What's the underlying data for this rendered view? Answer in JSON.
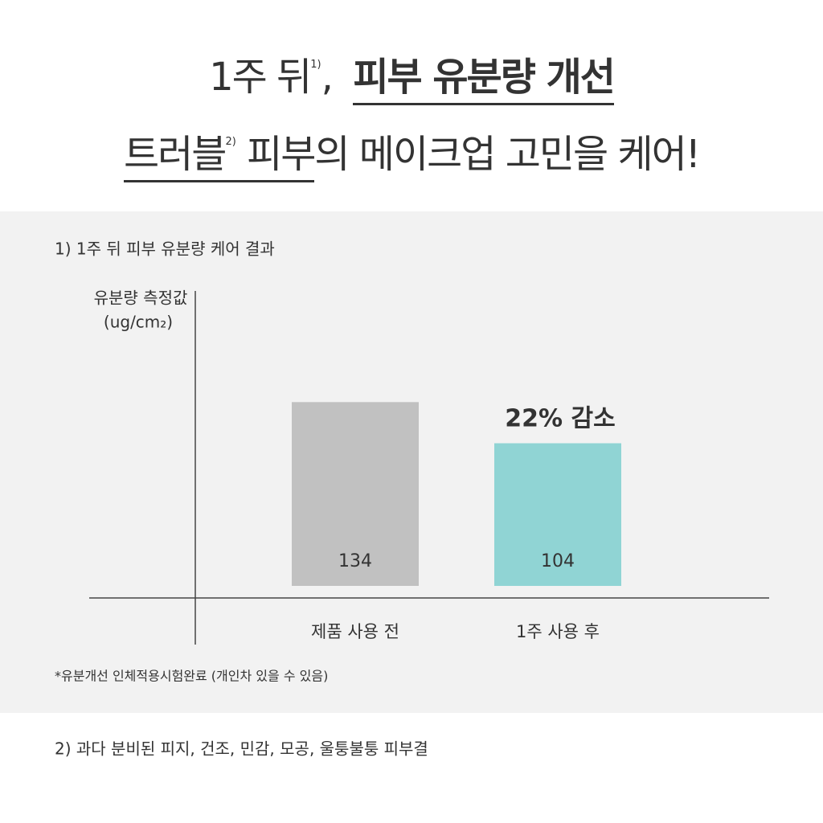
{
  "headline": {
    "line1": {
      "before": "1주 뒤",
      "note": "1)",
      "comma": ",",
      "underlined": "피부 유분량 개선"
    },
    "line2": {
      "underlined_start": "트러블",
      "note": "2)",
      "underlined_end": "피부",
      "after": "의 메이크업 고민을 케어!"
    }
  },
  "chart_data": {
    "type": "bar",
    "title": "1) 1주 뒤 피부 유분량 케어 결과",
    "y_label": "유분량 측정값",
    "y_unit": "(ug/cm₂)",
    "categories": [
      "제품 사용 전",
      "1주 사용 후"
    ],
    "values": [
      134,
      104
    ],
    "colors": [
      "#c1c1c1",
      "#90d4d4"
    ],
    "ylim": [
      0,
      150
    ],
    "annotation": "22% 감소"
  },
  "footnote": "*유분개선 인체적용시험완료 (개인차 있을 수 있음)",
  "note2": "2) 과다 분비된 피지, 건조, 민감, 모공, 울퉁불퉁 피부결"
}
